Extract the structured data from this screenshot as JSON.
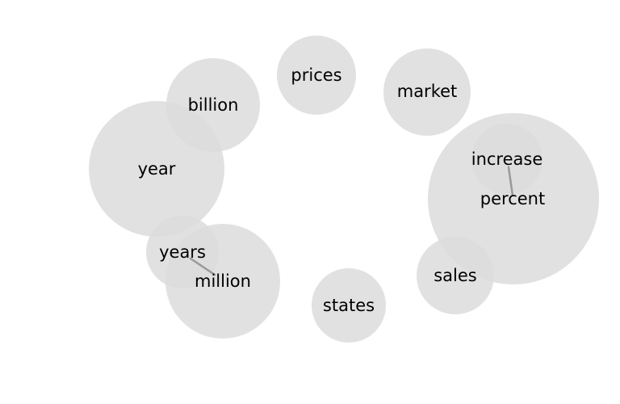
{
  "colors": {
    "background": "#ffffff",
    "bubble": "#dcdcdc",
    "leader_line": "#999999",
    "text": "#000000"
  },
  "bubbles": [
    {
      "id": "year",
      "label": "year"
    },
    {
      "id": "billion",
      "label": "billion"
    },
    {
      "id": "prices",
      "label": "prices"
    },
    {
      "id": "market",
      "label": "market"
    },
    {
      "id": "percent",
      "label": "percent"
    },
    {
      "id": "increase",
      "label": "increase"
    },
    {
      "id": "years",
      "label": "years"
    },
    {
      "id": "million",
      "label": "million"
    },
    {
      "id": "states",
      "label": "states"
    },
    {
      "id": "sales",
      "label": "sales"
    }
  ]
}
